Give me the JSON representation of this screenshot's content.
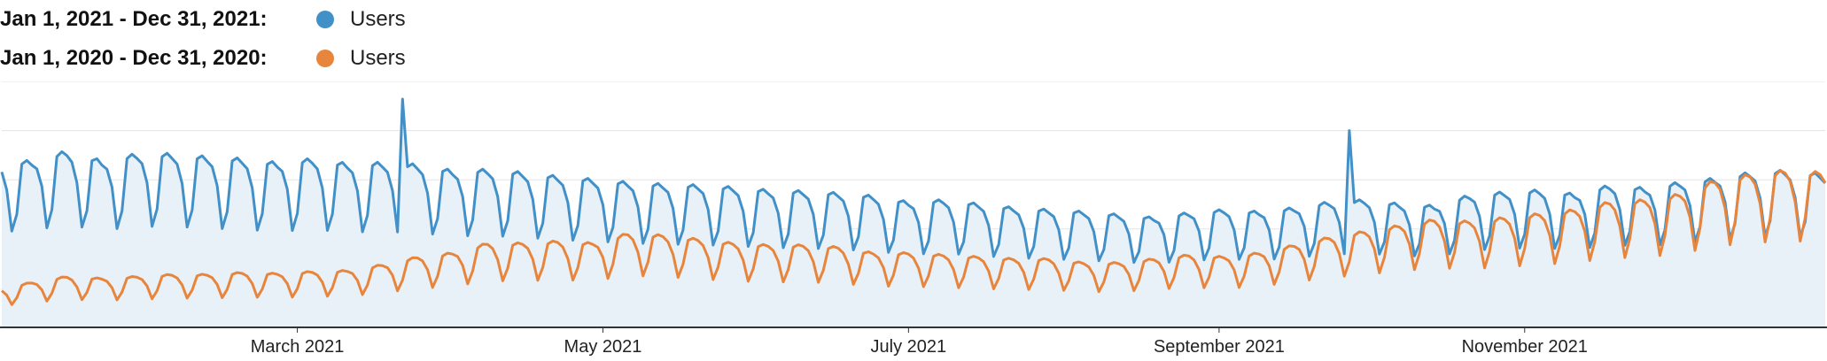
{
  "legend": [
    {
      "date_range": "Jan 1, 2021 - Dec 31, 2021:",
      "metric": "Users"
    },
    {
      "date_range": "Jan 1, 2020 - Dec 31, 2020:",
      "metric": "Users"
    }
  ],
  "colors": {
    "series_2021": "#4190c8",
    "series_2020": "#e8853c",
    "area_fill": "#e8f0f8",
    "grid": "#e3e3e3",
    "axis": "#333333",
    "tick_label": "#222222"
  },
  "chart_data": {
    "type": "line",
    "title": "",
    "xlabel": "",
    "ylabel": "",
    "x_tick_labels": [
      "March 2021",
      "May 2021",
      "July 2021",
      "September 2021",
      "November 2021"
    ],
    "x_tick_days": [
      59,
      120,
      181,
      243,
      304
    ],
    "y_axis_labels_visible": false,
    "ylim": [
      0,
      250
    ],
    "grid": true,
    "legend_position": "top-left",
    "series": [
      {
        "name": "Jan 1, 2021 - Dec 31, 2021: Users",
        "fill": true,
        "weekly_pattern": [
          0.68,
          0.98,
          1.0,
          0.97,
          0.94,
          0.83,
          0.58
        ],
        "week_peaks": [
          [
            0,
            168
          ],
          [
            6,
            170
          ],
          [
            13,
            180
          ],
          [
            20,
            170
          ],
          [
            27,
            177
          ],
          [
            34,
            177
          ],
          [
            41,
            174
          ],
          [
            48,
            172
          ],
          [
            55,
            168
          ],
          [
            62,
            172
          ],
          [
            69,
            167
          ],
          [
            76,
            168
          ],
          [
            83,
            166
          ],
          [
            90,
            160
          ],
          [
            97,
            161
          ],
          [
            104,
            158
          ],
          [
            111,
            154
          ],
          [
            118,
            151
          ],
          [
            125,
            148
          ],
          [
            132,
            146
          ],
          [
            139,
            145
          ],
          [
            146,
            143
          ],
          [
            153,
            140
          ],
          [
            160,
            139
          ],
          [
            167,
            137
          ],
          [
            174,
            134
          ],
          [
            181,
            128
          ],
          [
            188,
            130
          ],
          [
            195,
            126
          ],
          [
            202,
            122
          ],
          [
            209,
            120
          ],
          [
            216,
            118
          ],
          [
            223,
            115
          ],
          [
            230,
            112
          ],
          [
            237,
            117
          ],
          [
            244,
            120
          ],
          [
            251,
            118
          ],
          [
            258,
            122
          ],
          [
            265,
            128
          ],
          [
            272,
            130
          ],
          [
            279,
            126
          ],
          [
            286,
            124
          ],
          [
            293,
            135
          ],
          [
            300,
            138
          ],
          [
            307,
            140
          ],
          [
            314,
            136
          ],
          [
            321,
            145
          ],
          [
            328,
            142
          ],
          [
            335,
            148
          ],
          [
            342,
            152
          ],
          [
            349,
            158
          ],
          [
            356,
            160
          ],
          [
            364,
            156
          ]
        ],
        "spikes": [
          [
            80,
            232
          ],
          [
            269,
            200
          ]
        ]
      },
      {
        "name": "Jan 1, 2020 - Dec 31, 2020: Users",
        "fill": false,
        "weekly_pattern": [
          0.7,
          0.97,
          1.0,
          0.98,
          0.93,
          0.8,
          0.55
        ],
        "week_peaks": [
          [
            0,
            40
          ],
          [
            6,
            46
          ],
          [
            13,
            52
          ],
          [
            20,
            50
          ],
          [
            27,
            52
          ],
          [
            34,
            54
          ],
          [
            41,
            54
          ],
          [
            48,
            56
          ],
          [
            55,
            55
          ],
          [
            62,
            57
          ],
          [
            69,
            58
          ],
          [
            76,
            64
          ],
          [
            83,
            72
          ],
          [
            90,
            76
          ],
          [
            97,
            86
          ],
          [
            104,
            86
          ],
          [
            111,
            88
          ],
          [
            118,
            86
          ],
          [
            125,
            96
          ],
          [
            132,
            94
          ],
          [
            139,
            90
          ],
          [
            146,
            86
          ],
          [
            153,
            84
          ],
          [
            160,
            84
          ],
          [
            167,
            82
          ],
          [
            174,
            76
          ],
          [
            181,
            76
          ],
          [
            188,
            74
          ],
          [
            195,
            72
          ],
          [
            202,
            70
          ],
          [
            209,
            70
          ],
          [
            216,
            66
          ],
          [
            223,
            66
          ],
          [
            230,
            70
          ],
          [
            237,
            74
          ],
          [
            244,
            72
          ],
          [
            251,
            76
          ],
          [
            258,
            84
          ],
          [
            265,
            92
          ],
          [
            272,
            98
          ],
          [
            279,
            104
          ],
          [
            286,
            110
          ],
          [
            293,
            108
          ],
          [
            300,
            112
          ],
          [
            307,
            116
          ],
          [
            314,
            120
          ],
          [
            321,
            128
          ],
          [
            328,
            130
          ],
          [
            335,
            136
          ],
          [
            342,
            150
          ],
          [
            349,
            156
          ],
          [
            356,
            160
          ],
          [
            364,
            158
          ]
        ],
        "spikes": []
      }
    ]
  }
}
